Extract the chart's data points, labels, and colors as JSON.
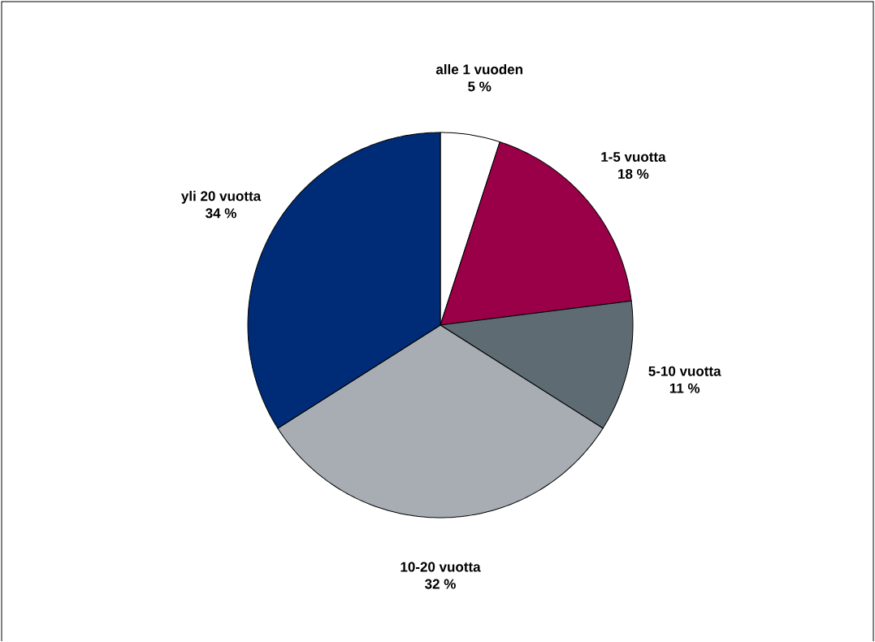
{
  "chart_data": {
    "type": "pie",
    "categories": [
      "alle 1 vuoden",
      "1-5 vuotta",
      "5-10 vuotta",
      "10-20 vuotta",
      "yli 20 vuotta"
    ],
    "values": [
      5,
      18,
      11,
      32,
      34
    ],
    "value_labels": [
      "5 %",
      "18 %",
      "11 %",
      "32 %",
      "34 %"
    ],
    "colors": [
      "#ffffff",
      "#990047",
      "#5f6b73",
      "#a7adb2",
      "#002b77"
    ]
  }
}
